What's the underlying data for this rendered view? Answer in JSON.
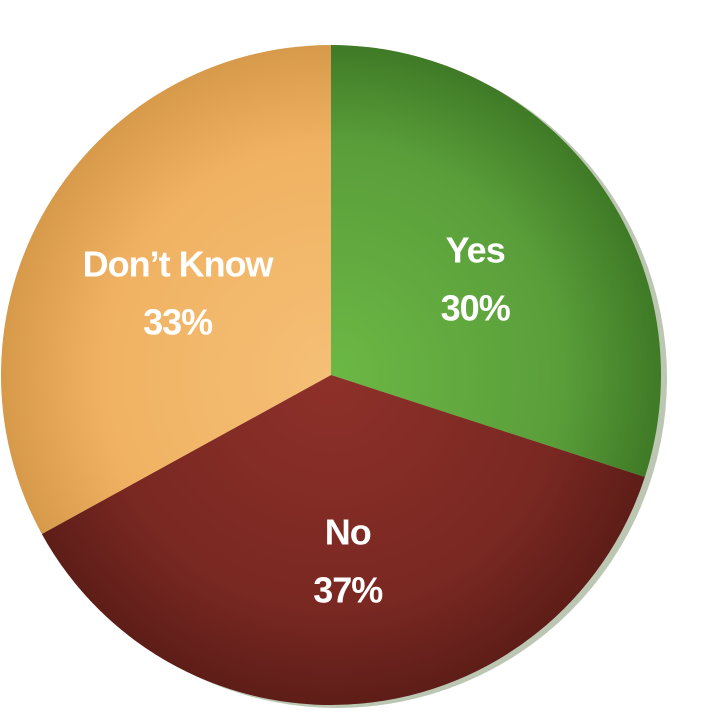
{
  "chart_data": {
    "type": "pie",
    "slices": [
      {
        "label": "Yes",
        "value": 30,
        "value_label": "30%",
        "color": "#5a9e3a",
        "color_light": "#6cb845",
        "color_dark": "#3f7a26"
      },
      {
        "label": "No",
        "value": 37,
        "value_label": "37%",
        "color": "#7a2822",
        "color_light": "#8e302a",
        "color_dark": "#5e1d18"
      },
      {
        "label": "Don’t Know",
        "value": 33,
        "value_label": "33%",
        "color": "#f0b262",
        "color_light": "#f5bf76",
        "color_dark": "#d79a4a"
      }
    ],
    "start_angle_deg": 0,
    "direction": "clockwise",
    "legend": "none",
    "title": ""
  }
}
